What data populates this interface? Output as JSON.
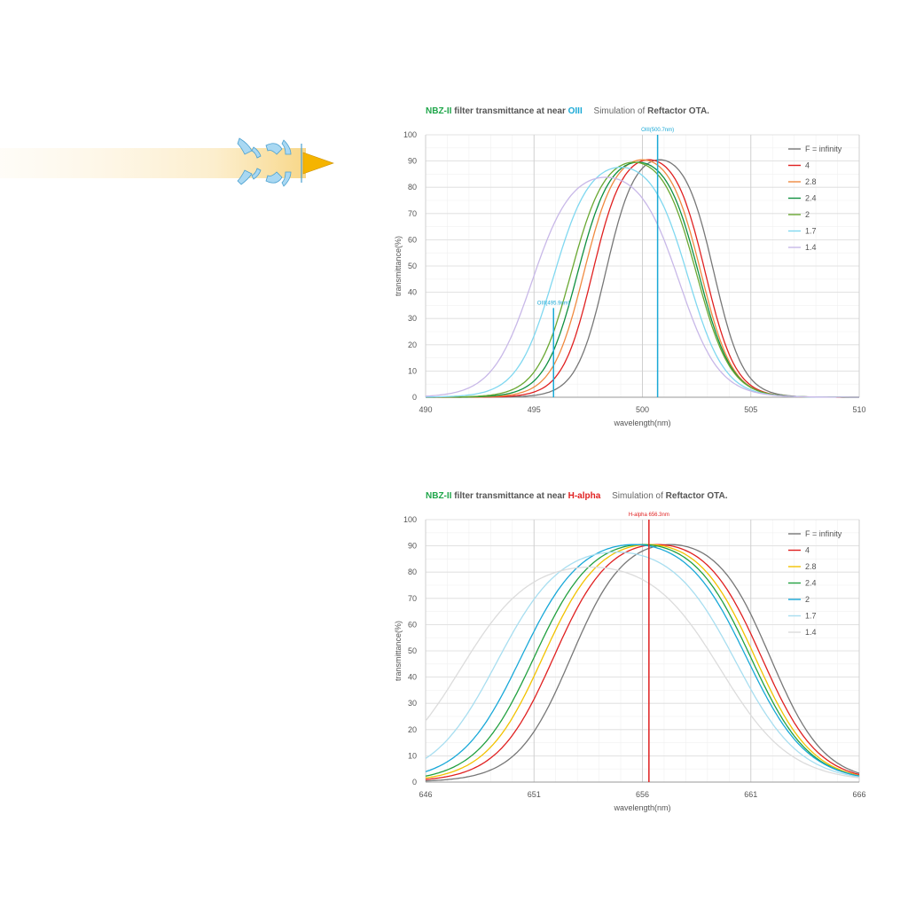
{
  "chart_data": [
    {
      "type": "line",
      "title_parts": {
        "filter": "NBZ-II",
        "middle": "filter transmittance  at near",
        "line_name": "OIII",
        "sim_prefix": "Simulation of",
        "ota": "Reftactor OTA."
      },
      "xlabel": "wavelength(nm)",
      "ylabel": "transmittance(%)",
      "xlim": [
        490,
        510
      ],
      "ylim": [
        0,
        100
      ],
      "xticks": [
        "490",
        "495",
        "500",
        "505",
        "510"
      ],
      "yticks": [
        "0",
        "10",
        "20",
        "30",
        "40",
        "50",
        "60",
        "70",
        "80",
        "90",
        "100"
      ],
      "grid": true,
      "legend_position": "right",
      "markers": [
        {
          "label": "OIII(500.7nm)",
          "x": 500.7,
          "top": 100,
          "color": "#1aa9d6"
        },
        {
          "label": "OIII(495.9nm)",
          "x": 495.9,
          "top": 34,
          "color": "#1aa9d6"
        }
      ],
      "series": [
        {
          "name": "F = infinity",
          "color": "#777777",
          "center": 500.8,
          "halfwidth": 2.5,
          "peak": 95
        },
        {
          "name": "4",
          "color": "#e02020",
          "center": 500.3,
          "halfwidth": 2.6,
          "peak": 95
        },
        {
          "name": "2.8",
          "color": "#f08a40",
          "center": 500.0,
          "halfwidth": 2.7,
          "peak": 95
        },
        {
          "name": "2.4",
          "color": "#109040",
          "center": 499.8,
          "halfwidth": 2.8,
          "peak": 94
        },
        {
          "name": "2",
          "color": "#6aa832",
          "center": 499.6,
          "halfwidth": 2.9,
          "peak": 94
        },
        {
          "name": "1.7",
          "color": "#80d8f0",
          "center": 499.0,
          "halfwidth": 3.1,
          "peak": 92
        },
        {
          "name": "1.4",
          "color": "#c8b8e8",
          "center": 498.3,
          "halfwidth": 3.4,
          "peak": 88
        }
      ]
    },
    {
      "type": "line",
      "title_parts": {
        "filter": "NBZ-II",
        "middle": "filter transmittance  at near",
        "line_name": "H-alpha",
        "sim_prefix": "Simulation of",
        "ota": "Reftactor OTA."
      },
      "xlabel": "wavelength(nm)",
      "ylabel": "transmittance(%)",
      "xlim": [
        646,
        666
      ],
      "ylim": [
        0,
        100
      ],
      "xticks": [
        "646",
        "651",
        "656",
        "661",
        "666"
      ],
      "yticks": [
        "0",
        "10",
        "20",
        "30",
        "40",
        "50",
        "60",
        "70",
        "80",
        "90",
        "100"
      ],
      "grid": true,
      "legend_position": "right",
      "markers": [
        {
          "label": "H-alpha 656.3nm",
          "x": 656.3,
          "top": 100,
          "color": "#e02020"
        }
      ],
      "series": [
        {
          "name": "F = infinity",
          "color": "#777777",
          "center": 657.3,
          "halfwidth": 4.6,
          "peak": 95
        },
        {
          "name": "4",
          "color": "#e02020",
          "center": 656.7,
          "halfwidth": 4.8,
          "peak": 95
        },
        {
          "name": "2.8",
          "color": "#f2c200",
          "center": 656.3,
          "halfwidth": 4.9,
          "peak": 95
        },
        {
          "name": "2.4",
          "color": "#22a040",
          "center": 656.0,
          "halfwidth": 5.0,
          "peak": 95
        },
        {
          "name": "2",
          "color": "#18a8d8",
          "center": 655.6,
          "halfwidth": 5.2,
          "peak": 95
        },
        {
          "name": "1.7",
          "color": "#a8def0",
          "center": 654.8,
          "halfwidth": 5.5,
          "peak": 92
        },
        {
          "name": "1.4",
          "color": "#dcdcdc",
          "center": 653.6,
          "halfwidth": 6.0,
          "peak": 86
        }
      ]
    }
  ]
}
